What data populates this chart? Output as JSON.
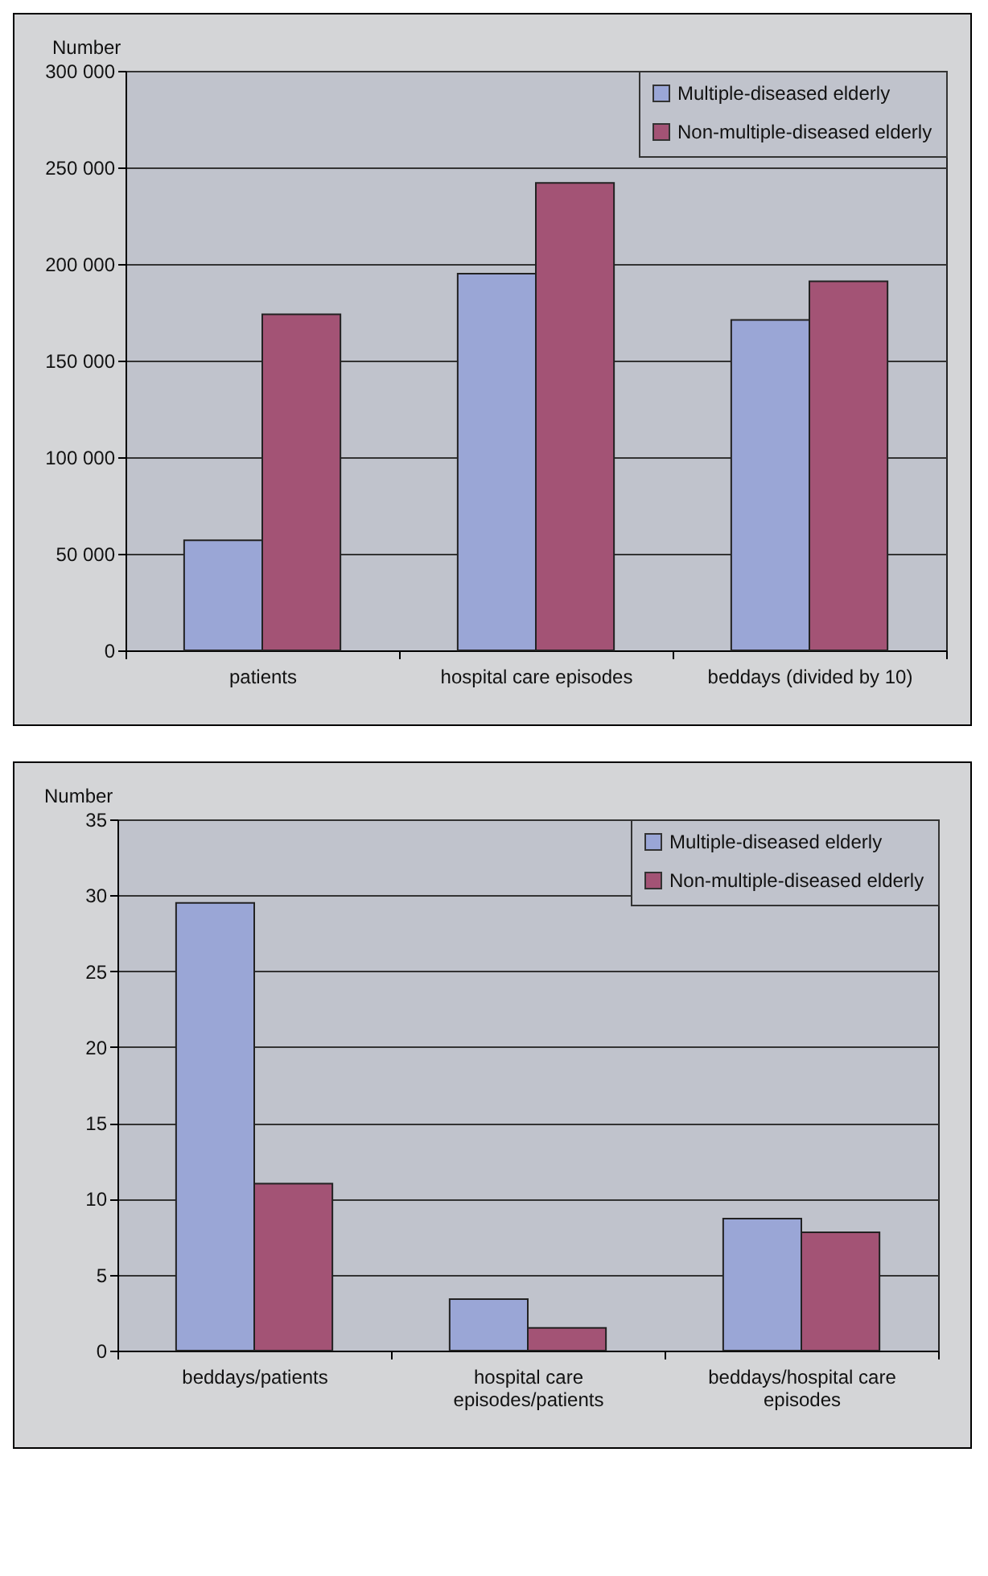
{
  "chart_data": [
    {
      "type": "bar",
      "ylabel": "Number",
      "categories": [
        "patients",
        "hospital care episodes",
        "beddays (divided by 10)"
      ],
      "series": [
        {
          "name": "Multiple-diseased elderly",
          "color": "#9aa6d6",
          "values": [
            57000,
            195000,
            171000
          ]
        },
        {
          "name": "Non-multiple-diseased elderly",
          "color": "#a35375",
          "values": [
            174000,
            242000,
            191000
          ]
        }
      ],
      "ylim": [
        0,
        300000
      ],
      "yticks": [
        0,
        {
          "value": 50000,
          "label": "50 000"
        },
        {
          "value": 100000,
          "label": "100 000"
        },
        {
          "value": 150000,
          "label": "150 000"
        },
        {
          "value": 200000,
          "label": "200 000"
        },
        {
          "value": 250000,
          "label": "250 000"
        },
        {
          "value": 300000,
          "label": "300 000"
        }
      ],
      "grid": "y",
      "legend": "top right"
    },
    {
      "type": "bar",
      "ylabel": "Number",
      "categories": [
        "beddays/patients",
        "hospital care episodes/patients",
        "beddays/hospital care episodes"
      ],
      "series": [
        {
          "name": "Multiple-diseased elderly",
          "color": "#9aa6d6",
          "values": [
            29.5,
            3.4,
            8.7
          ]
        },
        {
          "name": "Non-multiple-diseased elderly",
          "color": "#a35375",
          "values": [
            11.0,
            1.5,
            7.8
          ]
        }
      ],
      "ylim": [
        0,
        35
      ],
      "yticks": [
        0,
        5,
        10,
        15,
        20,
        25,
        30,
        35
      ],
      "grid": "y",
      "legend": "top right"
    }
  ]
}
